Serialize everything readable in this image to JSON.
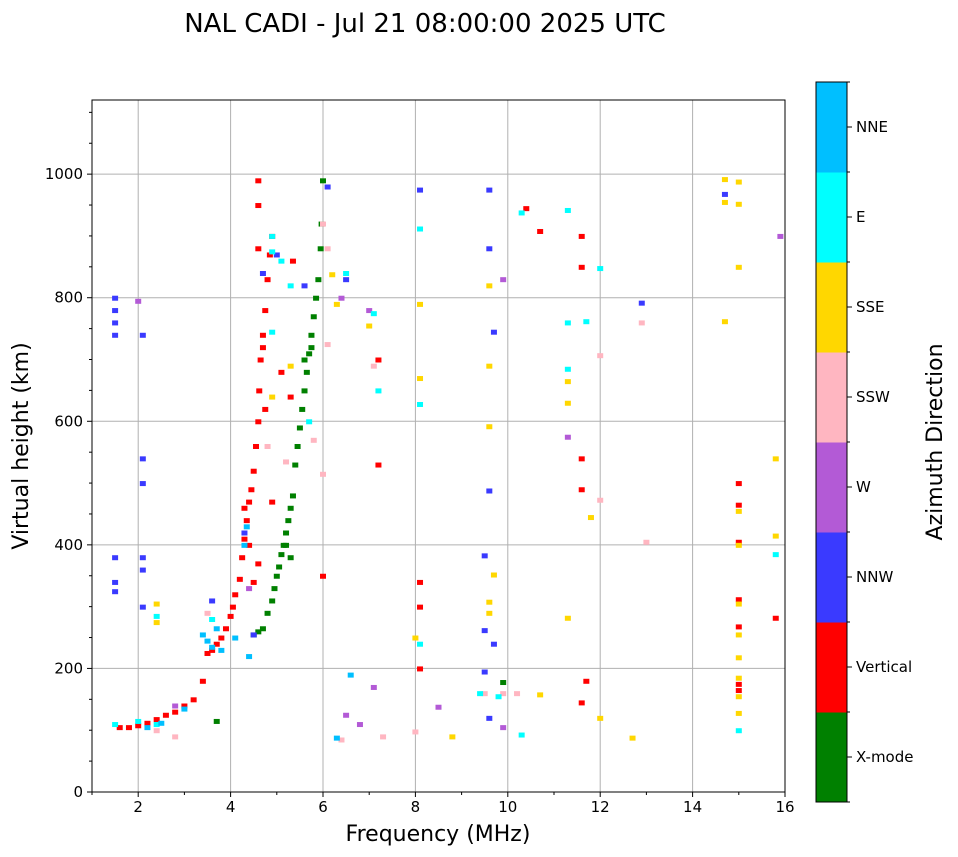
{
  "chart_data": {
    "type": "scatter",
    "title": "NAL CADI - Jul 21 08:00:00 2025 UTC",
    "xlabel": "Frequency (MHz)",
    "ylabel": "Virtual height (km)",
    "xlim": [
      1,
      16
    ],
    "ylim": [
      0,
      1120
    ],
    "xticks": [
      2,
      4,
      6,
      8,
      10,
      12,
      14,
      16
    ],
    "yticks": [
      0,
      200,
      400,
      600,
      800,
      1000
    ],
    "grid": true,
    "colorbar": {
      "title": "Azimuth Direction",
      "categories": [
        {
          "name": "X-mode",
          "color": "#008000"
        },
        {
          "name": "Vertical",
          "color": "#ff0000"
        },
        {
          "name": "NNW",
          "color": "#3a3aff"
        },
        {
          "name": "W",
          "color": "#b35ad6"
        },
        {
          "name": "SSW",
          "color": "#ffb6c1"
        },
        {
          "name": "SSE",
          "color": "#ffd700"
        },
        {
          "name": "E",
          "color": "#00ffff"
        },
        {
          "name": "NNE",
          "color": "#00bfff"
        }
      ]
    },
    "series": [
      {
        "name": "X-mode",
        "points": [
          [
            3.7,
            115
          ],
          [
            4.5,
            255
          ],
          [
            4.6,
            260
          ],
          [
            4.7,
            265
          ],
          [
            4.8,
            290
          ],
          [
            4.9,
            310
          ],
          [
            4.95,
            330
          ],
          [
            5.0,
            350
          ],
          [
            5.05,
            365
          ],
          [
            5.1,
            385
          ],
          [
            5.15,
            400
          ],
          [
            5.2,
            420
          ],
          [
            5.25,
            440
          ],
          [
            5.3,
            460
          ],
          [
            5.35,
            480
          ],
          [
            5.4,
            530
          ],
          [
            5.45,
            560
          ],
          [
            5.5,
            590
          ],
          [
            5.55,
            620
          ],
          [
            5.6,
            650
          ],
          [
            5.65,
            680
          ],
          [
            5.7,
            710
          ],
          [
            5.75,
            740
          ],
          [
            5.8,
            770
          ],
          [
            5.85,
            800
          ],
          [
            5.9,
            830
          ],
          [
            5.95,
            880
          ],
          [
            5.97,
            920
          ],
          [
            6.0,
            990
          ],
          [
            9.9,
            178
          ],
          [
            5.2,
            400
          ],
          [
            5.3,
            380
          ],
          [
            5.6,
            700
          ],
          [
            5.75,
            720
          ]
        ]
      },
      {
        "name": "Vertical",
        "points": [
          [
            1.6,
            105
          ],
          [
            1.8,
            105
          ],
          [
            2.0,
            108
          ],
          [
            2.2,
            112
          ],
          [
            2.4,
            118
          ],
          [
            2.6,
            125
          ],
          [
            2.8,
            130
          ],
          [
            3.0,
            140
          ],
          [
            3.2,
            150
          ],
          [
            3.4,
            180
          ],
          [
            3.5,
            225
          ],
          [
            3.6,
            230
          ],
          [
            3.7,
            240
          ],
          [
            3.8,
            250
          ],
          [
            3.9,
            265
          ],
          [
            4.0,
            285
          ],
          [
            4.05,
            300
          ],
          [
            4.1,
            320
          ],
          [
            4.2,
            345
          ],
          [
            4.25,
            380
          ],
          [
            4.3,
            410
          ],
          [
            4.35,
            440
          ],
          [
            4.4,
            470
          ],
          [
            4.45,
            490
          ],
          [
            4.5,
            520
          ],
          [
            4.55,
            560
          ],
          [
            4.6,
            600
          ],
          [
            4.62,
            650
          ],
          [
            4.65,
            700
          ],
          [
            4.7,
            740
          ],
          [
            4.75,
            780
          ],
          [
            4.8,
            830
          ],
          [
            4.85,
            870
          ],
          [
            4.9,
            900
          ],
          [
            4.6,
            950
          ],
          [
            4.6,
            990
          ],
          [
            4.6,
            880
          ],
          [
            4.7,
            720
          ],
          [
            4.75,
            620
          ],
          [
            4.6,
            370
          ],
          [
            4.5,
            340
          ],
          [
            4.3,
            460
          ],
          [
            4.4,
            400
          ],
          [
            4.9,
            470
          ],
          [
            5.1,
            680
          ],
          [
            5.3,
            640
          ],
          [
            5.35,
            860
          ],
          [
            6.0,
            350
          ],
          [
            8.1,
            200
          ],
          [
            8.1,
            300
          ],
          [
            8.1,
            340
          ],
          [
            10.4,
            945
          ],
          [
            10.7,
            908
          ],
          [
            11.6,
            900
          ],
          [
            11.6,
            850
          ],
          [
            11.6,
            540
          ],
          [
            11.6,
            490
          ],
          [
            11.6,
            145
          ],
          [
            11.7,
            180
          ],
          [
            15.0,
            500
          ],
          [
            15.0,
            465
          ],
          [
            15.0,
            405
          ],
          [
            15.0,
            312
          ],
          [
            15.0,
            268
          ],
          [
            15.0,
            175
          ],
          [
            15.0,
            165
          ],
          [
            15.8,
            282
          ],
          [
            7.2,
            530
          ],
          [
            7.2,
            700
          ]
        ]
      },
      {
        "name": "NNW",
        "points": [
          [
            1.5,
            800
          ],
          [
            1.5,
            780
          ],
          [
            1.5,
            760
          ],
          [
            1.5,
            740
          ],
          [
            1.5,
            380
          ],
          [
            1.5,
            340
          ],
          [
            1.5,
            325
          ],
          [
            2.1,
            740
          ],
          [
            2.1,
            540
          ],
          [
            2.1,
            500
          ],
          [
            2.1,
            380
          ],
          [
            2.1,
            360
          ],
          [
            3.6,
            310
          ],
          [
            4.3,
            420
          ],
          [
            4.5,
            255
          ],
          [
            4.7,
            840
          ],
          [
            5.0,
            870
          ],
          [
            5.6,
            820
          ],
          [
            6.1,
            980
          ],
          [
            6.5,
            830
          ],
          [
            8.1,
            975
          ],
          [
            9.6,
            975
          ],
          [
            9.6,
            880
          ],
          [
            9.7,
            745
          ],
          [
            9.6,
            488
          ],
          [
            9.5,
            383
          ],
          [
            9.5,
            262
          ],
          [
            9.7,
            240
          ],
          [
            9.5,
            195
          ],
          [
            9.6,
            120
          ],
          [
            12.9,
            792
          ],
          [
            14.7,
            968
          ],
          [
            2.1,
            300
          ]
        ]
      },
      {
        "name": "W",
        "points": [
          [
            2.0,
            795
          ],
          [
            2.8,
            140
          ],
          [
            4.4,
            330
          ],
          [
            6.5,
            125
          ],
          [
            6.8,
            110
          ],
          [
            7.1,
            170
          ],
          [
            8.5,
            138
          ],
          [
            9.9,
            105
          ],
          [
            11.3,
            575
          ],
          [
            15.9,
            900
          ],
          [
            6.4,
            800
          ],
          [
            7.0,
            780
          ],
          [
            9.9,
            830
          ]
        ]
      },
      {
        "name": "SSW",
        "points": [
          [
            6.4,
            85
          ],
          [
            7.3,
            90
          ],
          [
            8.0,
            98
          ],
          [
            9.5,
            160
          ],
          [
            9.9,
            160
          ],
          [
            10.2,
            160
          ],
          [
            13.0,
            405
          ],
          [
            12.9,
            760
          ],
          [
            6.1,
            725
          ],
          [
            6.0,
            515
          ],
          [
            5.8,
            570
          ],
          [
            5.2,
            535
          ],
          [
            4.8,
            560
          ],
          [
            6.1,
            880
          ],
          [
            6.0,
            920
          ],
          [
            3.5,
            290
          ],
          [
            2.8,
            90
          ],
          [
            7.1,
            690
          ],
          [
            12.0,
            473
          ],
          [
            12.0,
            707
          ],
          [
            2.4,
            100
          ]
        ]
      },
      {
        "name": "SSE",
        "points": [
          [
            8.1,
            790
          ],
          [
            8.1,
            670
          ],
          [
            9.6,
            820
          ],
          [
            9.6,
            690
          ],
          [
            9.6,
            592
          ],
          [
            9.7,
            352
          ],
          [
            9.6,
            308
          ],
          [
            9.6,
            290
          ],
          [
            8.0,
            250
          ],
          [
            8.8,
            90
          ],
          [
            10.7,
            158
          ],
          [
            11.3,
            665
          ],
          [
            11.3,
            630
          ],
          [
            11.3,
            282
          ],
          [
            11.8,
            445
          ],
          [
            12.0,
            120
          ],
          [
            12.7,
            88
          ],
          [
            14.7,
            992
          ],
          [
            14.7,
            955
          ],
          [
            15.0,
            988
          ],
          [
            15.0,
            952
          ],
          [
            15.0,
            850
          ],
          [
            14.7,
            762
          ],
          [
            15.0,
            455
          ],
          [
            15.0,
            400
          ],
          [
            15.0,
            305
          ],
          [
            15.0,
            255
          ],
          [
            15.0,
            218
          ],
          [
            15.0,
            185
          ],
          [
            15.0,
            155
          ],
          [
            15.0,
            128
          ],
          [
            15.8,
            540
          ],
          [
            15.8,
            415
          ],
          [
            4.9,
            640
          ],
          [
            5.3,
            690
          ],
          [
            7.0,
            755
          ],
          [
            2.4,
            305
          ],
          [
            2.4,
            275
          ],
          [
            6.2,
            838
          ],
          [
            6.3,
            790
          ]
        ]
      },
      {
        "name": "E",
        "points": [
          [
            1.5,
            110
          ],
          [
            2.0,
            115
          ],
          [
            2.4,
            110
          ],
          [
            2.4,
            285
          ],
          [
            3.6,
            280
          ],
          [
            4.9,
            900
          ],
          [
            4.9,
            875
          ],
          [
            5.1,
            860
          ],
          [
            5.3,
            820
          ],
          [
            6.5,
            840
          ],
          [
            7.2,
            650
          ],
          [
            7.1,
            775
          ],
          [
            8.1,
            912
          ],
          [
            8.1,
            628
          ],
          [
            8.1,
            240
          ],
          [
            9.4,
            160
          ],
          [
            9.8,
            155
          ],
          [
            10.3,
            938
          ],
          [
            10.3,
            93
          ],
          [
            11.3,
            760
          ],
          [
            11.7,
            762
          ],
          [
            11.3,
            942
          ],
          [
            11.3,
            685
          ],
          [
            12.0,
            848
          ],
          [
            15.8,
            385
          ],
          [
            15.0,
            100
          ],
          [
            5.7,
            600
          ],
          [
            4.9,
            745
          ]
        ]
      },
      {
        "name": "NNE",
        "points": [
          [
            3.6,
            235
          ],
          [
            3.5,
            245
          ],
          [
            3.4,
            255
          ],
          [
            3.8,
            230
          ],
          [
            4.1,
            250
          ],
          [
            2.2,
            105
          ],
          [
            2.5,
            112
          ],
          [
            3.0,
            135
          ],
          [
            6.3,
            88
          ],
          [
            6.6,
            190
          ],
          [
            4.4,
            220
          ],
          [
            3.7,
            265
          ],
          [
            4.3,
            400
          ],
          [
            4.35,
            430
          ]
        ]
      }
    ]
  }
}
